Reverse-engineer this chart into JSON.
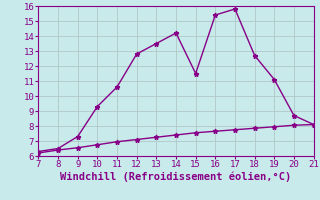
{
  "xlabel": "Windchill (Refroidissement éolien,°C)",
  "x_upper": [
    7,
    8,
    9,
    10,
    11,
    12,
    13,
    14,
    15,
    16,
    17,
    18,
    19,
    20,
    21
  ],
  "y_upper": [
    6.3,
    6.5,
    7.3,
    9.3,
    10.6,
    12.8,
    13.5,
    14.2,
    11.5,
    15.4,
    15.8,
    12.7,
    11.1,
    8.7,
    8.1
  ],
  "x_lower": [
    7,
    8,
    9,
    10,
    11,
    12,
    13,
    14,
    15,
    16,
    17,
    18,
    19,
    20,
    21
  ],
  "y_lower": [
    6.2,
    6.4,
    6.55,
    6.75,
    6.95,
    7.1,
    7.25,
    7.4,
    7.55,
    7.65,
    7.75,
    7.85,
    7.95,
    8.05,
    8.1
  ],
  "line_color": "#880088",
  "bg_color": "#c8eaea",
  "grid_color": "#b0c8c8",
  "xlim": [
    7,
    21
  ],
  "ylim": [
    6,
    16
  ],
  "xticks": [
    7,
    8,
    9,
    10,
    11,
    12,
    13,
    14,
    15,
    16,
    17,
    18,
    19,
    20,
    21
  ],
  "yticks": [
    6,
    7,
    8,
    9,
    10,
    11,
    12,
    13,
    14,
    15,
    16
  ],
  "marker": "*",
  "markersize": 3.5,
  "linewidth": 1.0,
  "tick_fontsize": 6.5,
  "xlabel_fontsize": 7.5
}
